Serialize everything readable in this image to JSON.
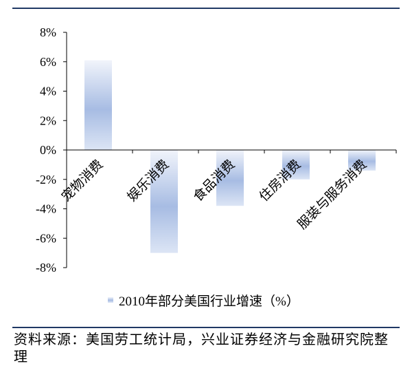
{
  "chart_data": {
    "type": "bar",
    "categories": [
      "宠物消费",
      "娱乐消费",
      "食品消费",
      "住房消费",
      "服装与服务消费"
    ],
    "series": [
      {
        "name": "2010年部分美国行业增速（%）",
        "values": [
          6.1,
          -7.0,
          -3.8,
          -2.0,
          -1.4
        ]
      }
    ],
    "ylim": [
      -8,
      8
    ],
    "yticks": [
      8,
      6,
      4,
      2,
      0,
      -2,
      -4,
      -6,
      -8
    ],
    "ytick_labels": [
      "8%",
      "6%",
      "4%",
      "2%",
      "0%",
      "-2%",
      "-4%",
      "-6%",
      "-8%"
    ],
    "grid": false,
    "legend": {
      "position": "bottom"
    },
    "colors": {
      "bar_light": "#f1f4fb",
      "bar_dark": "#a7bce3",
      "bar_mid": "#dce5f5"
    }
  },
  "source": "资料来源：美国劳工统计局，兴业证券经济与金融研究院整理",
  "colors": {
    "rule": "#1f3864",
    "axis": "#000000"
  }
}
